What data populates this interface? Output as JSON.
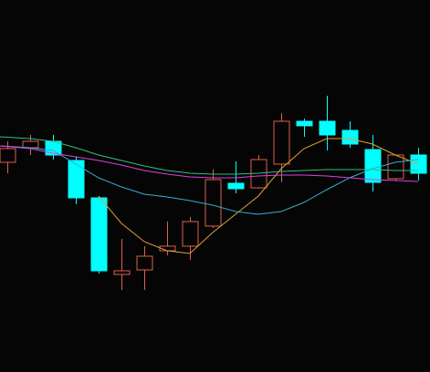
{
  "chart_data": {
    "type": "candlestick",
    "ylim": [
      0,
      408
    ],
    "up_color": "#e0604e",
    "down_color": "#00ffff",
    "open": [
      230,
      246,
      253,
      232,
      191,
      107,
      112,
      133,
      138,
      160,
      207,
      202,
      228,
      275,
      275,
      265,
      244,
      212,
      238
    ],
    "close": [
      245,
      253,
      238,
      191,
      111,
      111,
      127,
      138,
      165,
      211,
      201,
      233,
      275,
      270,
      260,
      250,
      208,
      238,
      218
    ],
    "high": [
      253,
      260,
      260,
      236,
      193,
      146,
      138,
      165,
      170,
      222,
      231,
      238,
      284,
      278,
      303,
      275,
      260,
      238,
      246
    ],
    "low": [
      218,
      238,
      233,
      184,
      108,
      90,
      90,
      128,
      123,
      158,
      196,
      201,
      208,
      258,
      243,
      246,
      198,
      210,
      210
    ],
    "series": [
      {
        "color": "#e0a030",
        "values": [
          null,
          null,
          null,
          null,
          193,
          163,
          143,
          133,
          130,
          153,
          173,
          193,
          223,
          245,
          256,
          256,
          250,
          238,
          228
        ]
      },
      {
        "color": "#30b0d0",
        "values": [
          248,
          246,
          243,
          228,
          213,
          203,
          195,
          192,
          188,
          183,
          176,
          173,
          176,
          186,
          200,
          213,
          223,
          230,
          233
        ]
      },
      {
        "color": "#30c080",
        "values": [
          258,
          256,
          253,
          246,
          238,
          232,
          226,
          221,
          218,
          217,
          217,
          218,
          220,
          221,
          222,
          222,
          222,
          221,
          221
        ]
      },
      {
        "color": "#e040e0",
        "values": [
          248,
          245,
          240,
          236,
          232,
          227,
          221,
          217,
          214,
          213,
          213,
          215,
          216,
          216,
          215,
          213,
          211,
          210,
          209
        ]
      }
    ]
  }
}
